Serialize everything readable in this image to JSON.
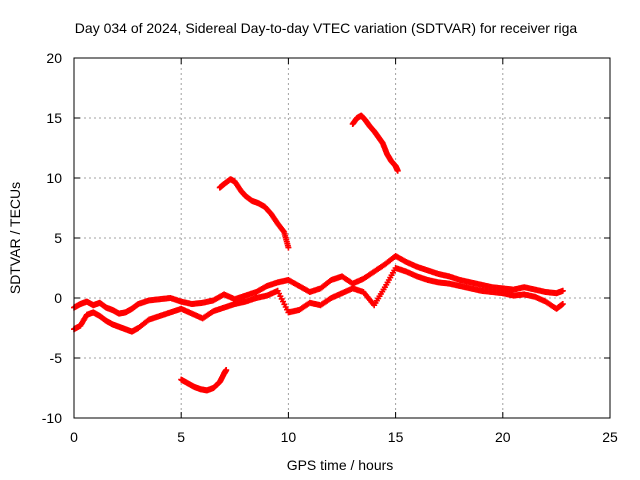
{
  "chart_data": {
    "type": "scatter",
    "title": "Day 034 of 2024, Sidereal Day-to-day VTEC variation (SDTVAR) for receiver riga",
    "xlabel": "GPS time / hours",
    "ylabel": "SDTVAR / TECUs",
    "xlim": [
      0,
      25
    ],
    "ylim": [
      -10,
      20
    ],
    "xticks": [
      0,
      5,
      10,
      15,
      20,
      25
    ],
    "yticks": [
      -10,
      -5,
      0,
      5,
      10,
      15,
      20
    ],
    "grid": true,
    "marker": "plus",
    "color": "#ff0000",
    "series": [
      {
        "name": "main-trace-upper",
        "x": [
          0.0,
          0.3,
          0.6,
          0.9,
          1.2,
          1.5,
          1.8,
          2.1,
          2.4,
          2.7,
          3.0,
          3.5,
          4.0,
          4.5,
          5.0,
          5.5,
          6.0,
          6.5,
          7.0,
          7.5,
          8.0,
          8.5,
          9.0,
          9.5,
          10.0,
          10.5,
          11.0,
          11.5,
          12.0,
          12.5,
          13.0,
          13.5,
          14.0,
          14.5,
          15.0,
          15.5,
          16.0,
          16.5,
          17.0,
          17.5,
          18.0,
          18.5,
          19.0,
          19.5,
          20.0,
          20.5,
          21.0,
          21.5,
          22.0,
          22.5,
          22.8
        ],
        "y": [
          -0.8,
          -0.5,
          -0.3,
          -0.6,
          -0.4,
          -0.8,
          -1.0,
          -1.3,
          -1.2,
          -0.9,
          -0.5,
          -0.2,
          -0.1,
          0.0,
          -0.3,
          -0.5,
          -0.4,
          -0.2,
          0.3,
          -0.1,
          0.2,
          0.5,
          1.0,
          1.3,
          1.5,
          1.0,
          0.5,
          0.8,
          1.5,
          1.8,
          1.2,
          1.6,
          2.2,
          2.8,
          3.5,
          3.0,
          2.6,
          2.3,
          2.0,
          1.8,
          1.5,
          1.3,
          1.1,
          0.9,
          0.8,
          0.7,
          0.9,
          0.7,
          0.5,
          0.4,
          0.6
        ]
      },
      {
        "name": "main-trace-lower",
        "x": [
          0.0,
          0.3,
          0.6,
          0.9,
          1.2,
          1.5,
          1.8,
          2.1,
          2.4,
          2.7,
          3.0,
          3.5,
          4.0,
          4.5,
          5.0,
          5.5,
          6.0,
          6.5,
          7.0,
          7.5,
          8.0,
          8.5,
          9.0,
          9.5,
          10.0,
          10.5,
          11.0,
          11.5,
          12.0,
          12.5,
          13.0,
          13.5,
          14.0,
          14.5,
          15.0,
          15.5,
          16.0,
          16.5,
          17.0,
          17.5,
          18.0,
          18.5,
          19.0,
          19.5,
          20.0,
          20.5,
          21.0,
          21.5,
          22.0,
          22.5,
          22.8
        ],
        "y": [
          -2.6,
          -2.3,
          -1.4,
          -1.2,
          -1.5,
          -1.9,
          -2.2,
          -2.4,
          -2.6,
          -2.8,
          -2.5,
          -1.8,
          -1.5,
          -1.2,
          -0.9,
          -1.3,
          -1.7,
          -1.1,
          -0.8,
          -0.5,
          -0.3,
          0.0,
          0.2,
          0.6,
          -1.2,
          -1.0,
          -0.4,
          -0.6,
          0.0,
          0.4,
          0.8,
          0.5,
          -0.6,
          0.9,
          2.5,
          2.2,
          1.8,
          1.5,
          1.3,
          1.2,
          1.0,
          0.8,
          0.6,
          0.5,
          0.4,
          0.2,
          0.3,
          0.1,
          -0.3,
          -0.9,
          -0.5
        ]
      },
      {
        "name": "dip-arc",
        "x": [
          5.0,
          5.3,
          5.6,
          5.9,
          6.2,
          6.5,
          6.8,
          7.0,
          7.1
        ],
        "y": [
          -6.8,
          -7.1,
          -7.4,
          -7.6,
          -7.7,
          -7.5,
          -7.0,
          -6.3,
          -6.0
        ]
      },
      {
        "name": "mid-descending-arc",
        "x": [
          6.8,
          7.0,
          7.3,
          7.5,
          7.8,
          8.0,
          8.3,
          8.6,
          8.9,
          9.2,
          9.5,
          9.8,
          10.0
        ],
        "y": [
          9.2,
          9.5,
          9.9,
          9.7,
          8.9,
          8.5,
          8.1,
          7.9,
          7.6,
          7.0,
          6.2,
          5.5,
          4.2
        ]
      },
      {
        "name": "high-descending-arc",
        "x": [
          13.0,
          13.2,
          13.4,
          13.6,
          13.8,
          14.0,
          14.2,
          14.4,
          14.6,
          14.8,
          15.0,
          15.1
        ],
        "y": [
          14.5,
          15.0,
          15.2,
          14.8,
          14.3,
          13.9,
          13.4,
          12.9,
          12.0,
          11.4,
          11.0,
          10.6
        ]
      }
    ]
  }
}
